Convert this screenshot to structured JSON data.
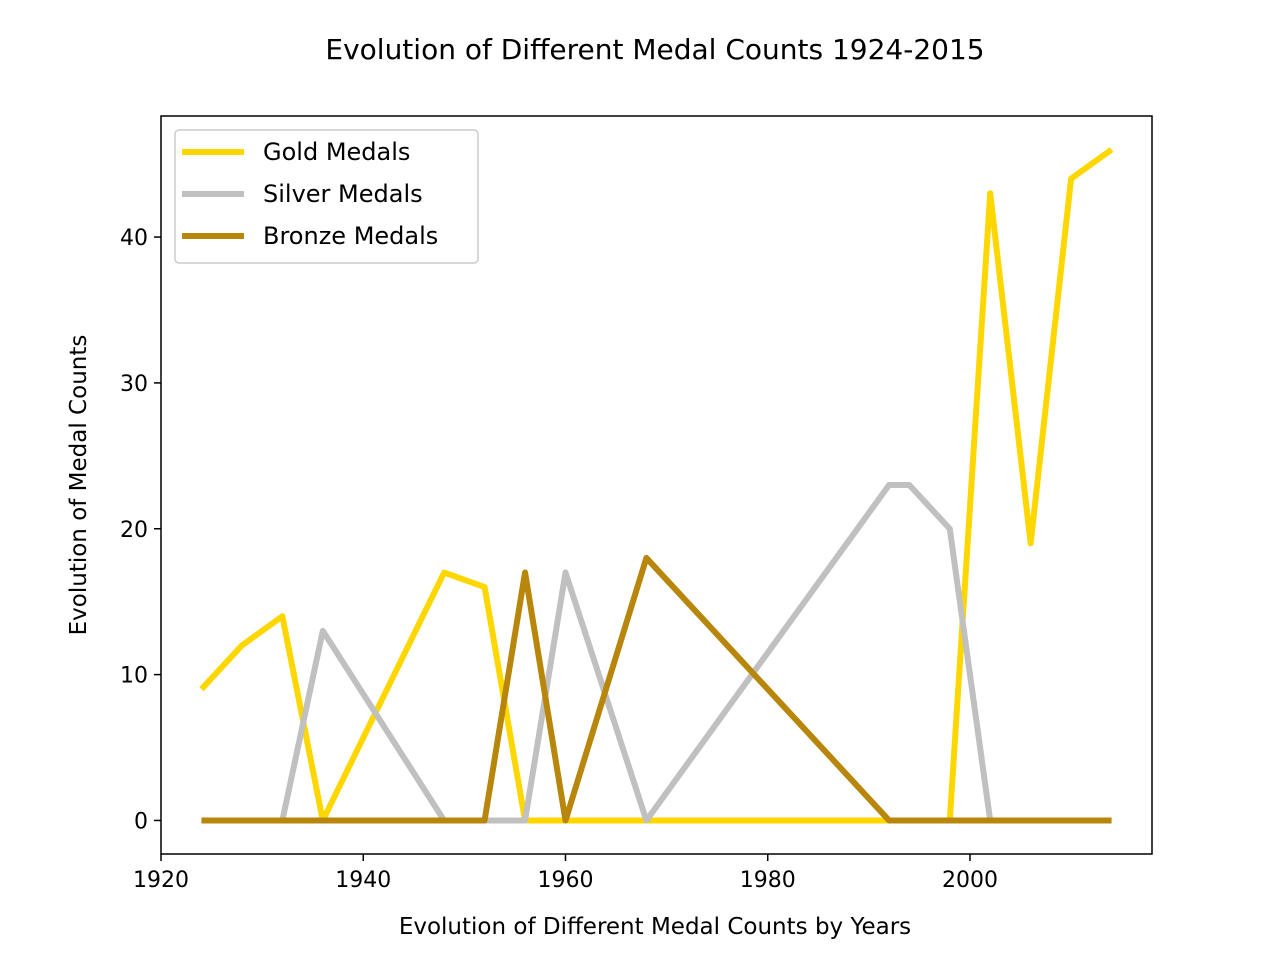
{
  "chart_data": {
    "type": "line",
    "title": "Evolution of Different Medal Counts 1924-2015",
    "xlabel": "Evolution of Different Medal Counts by Years",
    "ylabel": "Evolution of Medal Counts",
    "xlim": [
      1920,
      2018
    ],
    "ylim": [
      -2.3,
      48.3
    ],
    "xticks": [
      1920,
      1940,
      1960,
      1980,
      2000
    ],
    "yticks": [
      0,
      10,
      20,
      30,
      40
    ],
    "grid": false,
    "legend_position": "upper-left",
    "series": [
      {
        "name": "Gold Medals",
        "color": "#FFD700",
        "x": [
          1924,
          1928,
          1932,
          1936,
          1948,
          1952,
          1956,
          1960,
          1964,
          1968,
          1972,
          1976,
          1980,
          1984,
          1988,
          1992,
          1994,
          1998,
          2002,
          2006,
          2010,
          2014
        ],
        "y": [
          9,
          12,
          14,
          0,
          17,
          16,
          0,
          0,
          0,
          0,
          0,
          0,
          0,
          0,
          0,
          0,
          0,
          0,
          43,
          19,
          44,
          46
        ]
      },
      {
        "name": "Silver Medals",
        "color": "#C0C0C0",
        "x": [
          1924,
          1928,
          1932,
          1936,
          1948,
          1952,
          1956,
          1960,
          1968,
          1992,
          1994,
          1998,
          2002,
          2006,
          2010,
          2014
        ],
        "y": [
          0,
          0,
          0,
          13,
          0,
          0,
          0,
          17,
          0,
          23,
          23,
          20,
          0,
          0,
          0,
          0
        ]
      },
      {
        "name": "Bronze Medals",
        "color": "#B8860B",
        "x": [
          1924,
          1928,
          1932,
          1936,
          1948,
          1952,
          1956,
          1960,
          1968,
          1992,
          1994,
          1998,
          2002,
          2006,
          2010,
          2014
        ],
        "y": [
          0,
          0,
          0,
          0,
          0,
          0,
          17,
          0,
          18,
          0,
          0,
          0,
          0,
          0,
          0,
          0
        ]
      }
    ]
  }
}
